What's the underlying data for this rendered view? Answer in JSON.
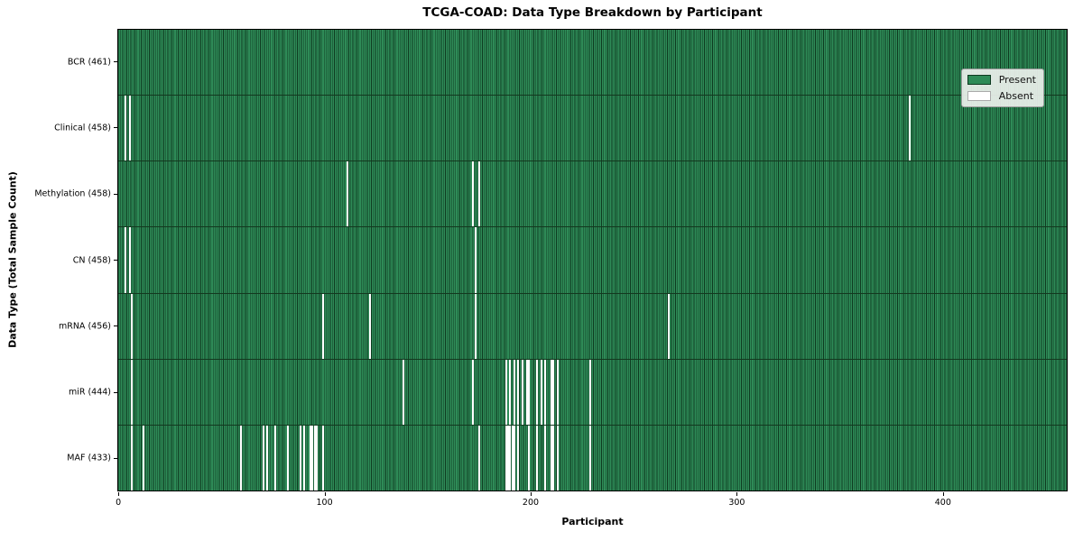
{
  "chart_data": {
    "type": "heatmap",
    "title": "TCGA-COAD: Data Type Breakdown by Participant",
    "xlabel": "Participant",
    "ylabel": "Data Type (Total Sample Count)",
    "n_participants": 461,
    "x_ticks": [
      0,
      100,
      200,
      300,
      400
    ],
    "grid": false,
    "legend_position": "upper right",
    "legend": [
      {
        "label": "Present",
        "color": "#2e8b57"
      },
      {
        "label": "Absent",
        "color": "#ffffff"
      }
    ],
    "colors": {
      "present": "#2e8b57",
      "absent": "#ffffff",
      "bar_edge": "#0e3a20",
      "row_border": "#13381f",
      "spine": "#000000",
      "legend_bg": "#edf1ed",
      "legend_border": "#9c9c9c"
    },
    "rows": [
      {
        "label": "BCR (461)",
        "data_type": "BCR",
        "present_count": 461,
        "absent_participants": []
      },
      {
        "label": "Clinical (458)",
        "data_type": "Clinical",
        "present_count": 458,
        "absent_participants": [
          3,
          5,
          384
        ]
      },
      {
        "label": "Methylation (458)",
        "data_type": "Methylation",
        "present_count": 458,
        "absent_participants": [
          111,
          172,
          175
        ]
      },
      {
        "label": "CN (458)",
        "data_type": "CN",
        "present_count": 458,
        "absent_participants": [
          3,
          5,
          173
        ]
      },
      {
        "label": "mRNA (456)",
        "data_type": "mRNA",
        "present_count": 456,
        "absent_participants": [
          6,
          99,
          122,
          173,
          267
        ]
      },
      {
        "label": "miR (444)",
        "data_type": "miR",
        "present_count": 444,
        "absent_participants": [
          6,
          138,
          172,
          188,
          190,
          192,
          194,
          196,
          198,
          199,
          203,
          205,
          207,
          210,
          211,
          213,
          229
        ]
      },
      {
        "label": "MAF (433)",
        "data_type": "MAF",
        "present_count": 433,
        "absent_participants": [
          6,
          12,
          59,
          70,
          72,
          76,
          82,
          88,
          90,
          93,
          94,
          95,
          96,
          99,
          175,
          188,
          189,
          190,
          191,
          192,
          194,
          199,
          203,
          207,
          210,
          211,
          213,
          229
        ]
      }
    ]
  }
}
